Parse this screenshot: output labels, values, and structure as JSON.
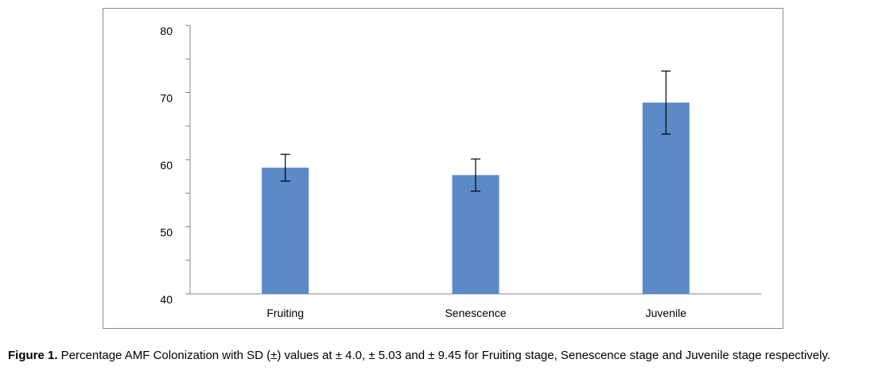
{
  "chart_data": {
    "type": "bar",
    "categories": [
      "Fruiting",
      "Senescence",
      "Juvenile"
    ],
    "values": [
      58.8,
      57.7,
      68.5
    ],
    "error": [
      2.0,
      2.4,
      4.7
    ],
    "ylim": [
      40,
      80
    ],
    "y_major_ticks": [
      40,
      50,
      60,
      70,
      80
    ],
    "y_minor_ticks": [
      45,
      55,
      65,
      75
    ],
    "bar_color": "#5b8ac6",
    "axis_color": "#868686",
    "grid": false,
    "legend": "none",
    "title": "",
    "xlabel": "",
    "ylabel": ""
  },
  "caption": {
    "label": "Figure 1.",
    "text": " Percentage AMF Colonization with SD (±) values at ± 4.0, ± 5.03 and ± 9.45 for Fruiting stage, Senescence stage and Juvenile stage respectively."
  }
}
